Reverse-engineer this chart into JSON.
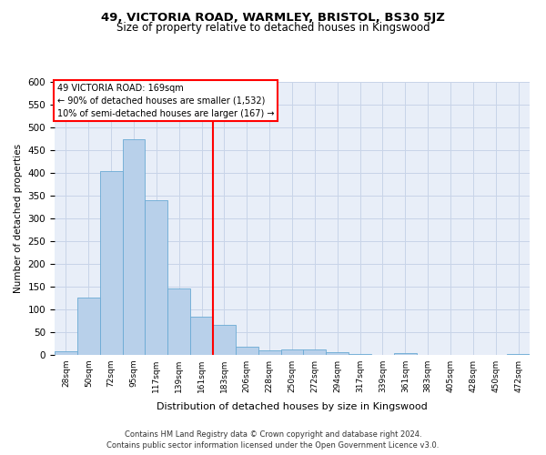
{
  "title1": "49, VICTORIA ROAD, WARMLEY, BRISTOL, BS30 5JZ",
  "title2": "Size of property relative to detached houses in Kingswood",
  "xlabel": "Distribution of detached houses by size in Kingswood",
  "ylabel": "Number of detached properties",
  "footnote1": "Contains HM Land Registry data © Crown copyright and database right 2024.",
  "footnote2": "Contains public sector information licensed under the Open Government Licence v3.0.",
  "bar_labels": [
    "28sqm",
    "50sqm",
    "72sqm",
    "95sqm",
    "117sqm",
    "139sqm",
    "161sqm",
    "183sqm",
    "206sqm",
    "228sqm",
    "250sqm",
    "272sqm",
    "294sqm",
    "317sqm",
    "339sqm",
    "361sqm",
    "383sqm",
    "405sqm",
    "428sqm",
    "450sqm",
    "472sqm"
  ],
  "bar_values": [
    8,
    127,
    405,
    475,
    340,
    147,
    85,
    67,
    18,
    11,
    13,
    13,
    6,
    3,
    0,
    4,
    0,
    0,
    0,
    0,
    3
  ],
  "bar_color": "#b8d0ea",
  "bar_edge_color": "#6aaad4",
  "grid_color": "#c8d4e8",
  "background_color": "#e8eef8",
  "annotation_box_text": "49 VICTORIA ROAD: 169sqm\n← 90% of detached houses are smaller (1,532)\n10% of semi-detached houses are larger (167) →",
  "annotation_box_color": "white",
  "annotation_box_edge_color": "red",
  "vline_x": 6.5,
  "vline_color": "red",
  "ylim": [
    0,
    600
  ],
  "yticks": [
    0,
    50,
    100,
    150,
    200,
    250,
    300,
    350,
    400,
    450,
    500,
    550,
    600
  ],
  "title1_fontsize": 9.5,
  "title2_fontsize": 8.5
}
